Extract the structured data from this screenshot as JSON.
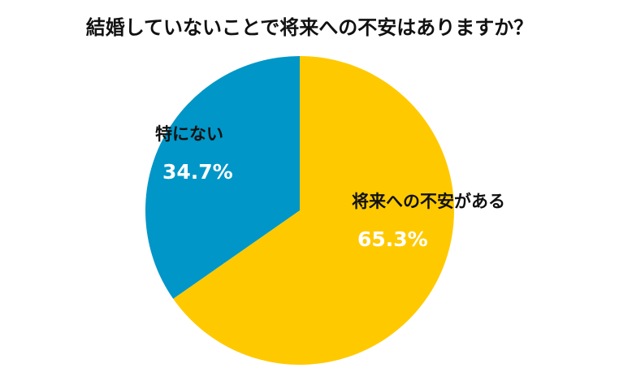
{
  "chart_data": {
    "type": "pie",
    "title": "結婚していないことで将来への不安はありますか？",
    "start": "12 o'clock, clockwise",
    "slices": [
      {
        "label": "将来への不安がある",
        "value": 65.3,
        "display": "65.3%",
        "color": "#FFC900"
      },
      {
        "label": "特にない",
        "value": 34.7,
        "display": "34.7%",
        "color": "#0096C8"
      }
    ]
  }
}
